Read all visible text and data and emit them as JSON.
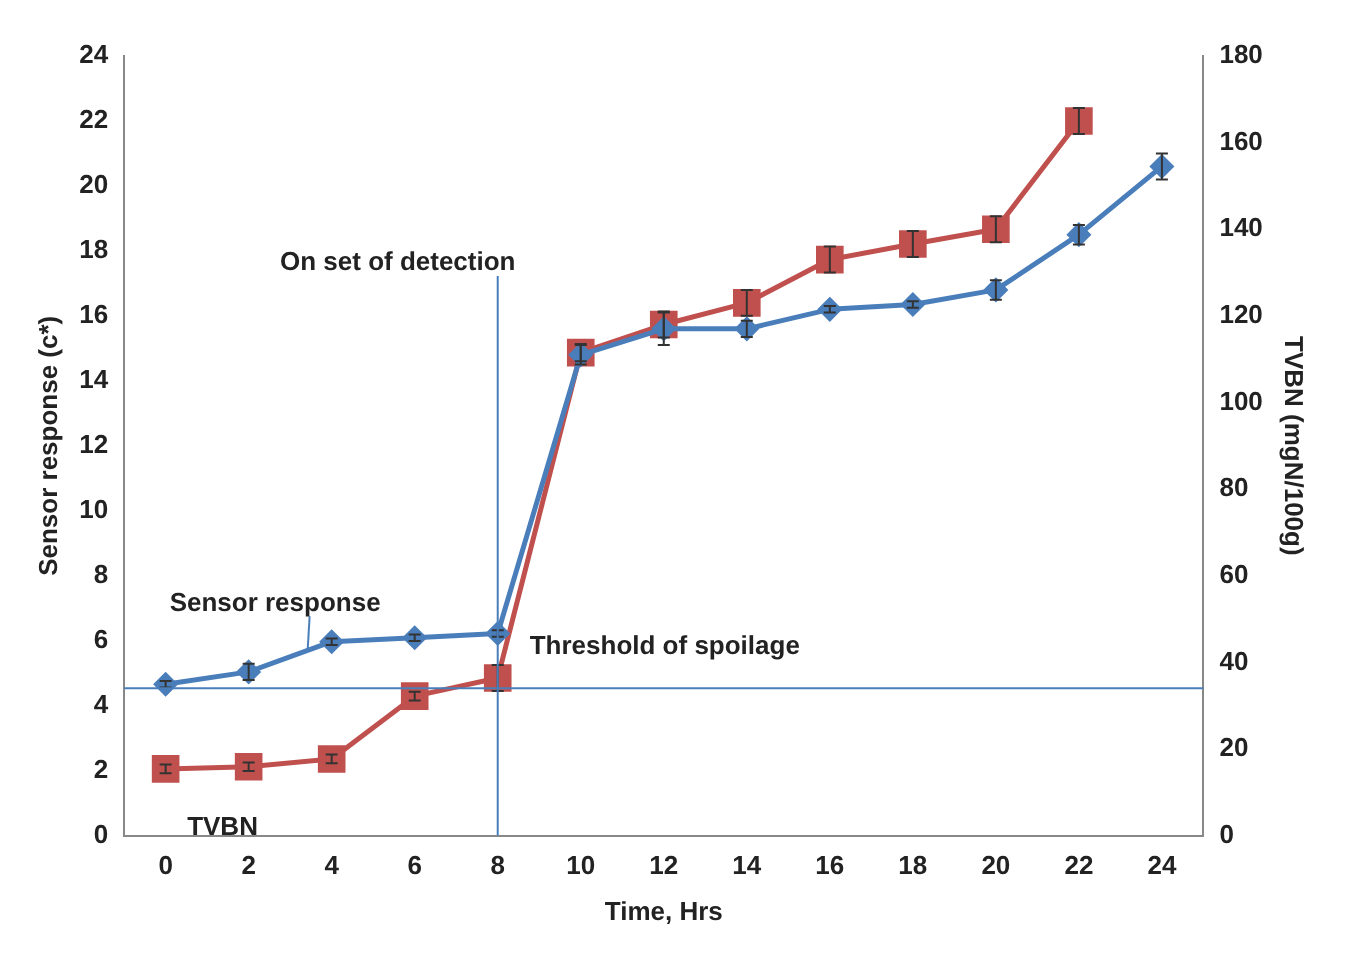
{
  "chart_data": {
    "type": "line",
    "xlabel": "Time, Hrs",
    "ylabel": "Sensor response (c*)",
    "y2label": "TVBN (mgN/100g)",
    "x": [
      0,
      2,
      4,
      6,
      8,
      10,
      12,
      14,
      16,
      18,
      20,
      22,
      24
    ],
    "xlim": [
      -1,
      25
    ],
    "xticks": [
      0,
      2,
      4,
      6,
      8,
      10,
      12,
      14,
      16,
      18,
      20,
      22,
      24
    ],
    "ylim": [
      0,
      24
    ],
    "yticks": [
      0,
      2,
      4,
      6,
      8,
      10,
      12,
      14,
      16,
      18,
      20,
      22,
      24
    ],
    "y2lim": [
      0,
      180
    ],
    "y2ticks": [
      0,
      20,
      40,
      60,
      80,
      100,
      120,
      140,
      160,
      180
    ],
    "series": [
      {
        "name": "Sensor response",
        "color": "#4a7ebb",
        "marker": "diamond",
        "values": [
          4.66,
          5.04,
          5.97,
          6.09,
          6.22,
          14.8,
          15.6,
          15.6,
          16.2,
          16.35,
          16.8,
          18.5,
          20.6
        ],
        "errors": [
          0.1,
          0.25,
          0.1,
          0.1,
          0.1,
          0.3,
          0.5,
          0.25,
          0.1,
          0.1,
          0.3,
          0.3,
          0.4
        ]
      },
      {
        "name": "TVBN",
        "color": "#c0504d",
        "marker": "square",
        "axis": "y2",
        "x": [
          0,
          2,
          4,
          6,
          8,
          10,
          12,
          14,
          16,
          18,
          20,
          22
        ],
        "values": [
          15.4,
          15.9,
          17.7,
          32.2,
          36.4,
          111.5,
          118,
          123,
          133,
          136.6,
          140,
          165
        ],
        "errors": [
          1,
          1,
          1,
          1,
          3,
          2,
          3,
          3,
          3,
          3,
          3,
          3
        ]
      }
    ],
    "ref_lines": [
      {
        "axis": "x",
        "value": 8,
        "label": "On set of detection",
        "color": "#4a7ebb"
      },
      {
        "axis": "y2",
        "value": 34,
        "label": "Threshold of spoilage",
        "color": "#4a7ebb"
      }
    ],
    "legend": false,
    "grid": false
  }
}
